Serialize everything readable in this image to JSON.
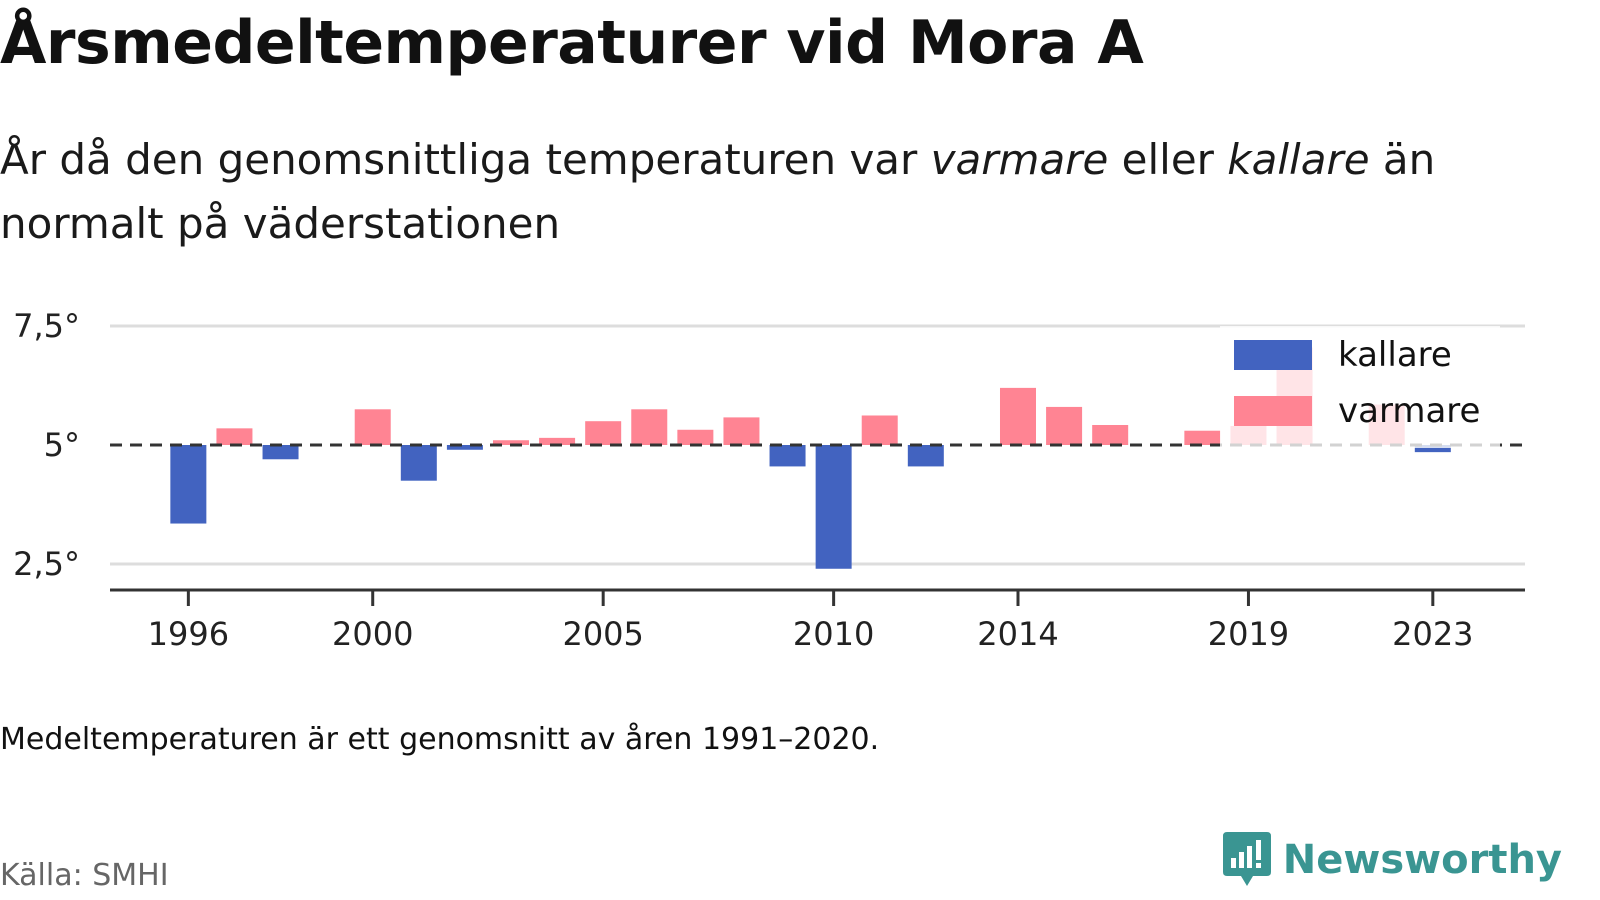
{
  "title": "Årsmedeltemperaturer vid Mora A",
  "subtitle": {
    "part1": "År då den genomsnittliga temperaturen var ",
    "warm_word": "varmare",
    "part2": " eller ",
    "cold_word": "kallare",
    "part3": " än normalt på väderstationen"
  },
  "note": "Medeltemperaturen är ett genomsnitt av åren 1991–2020.",
  "source": "Källa: SMHI",
  "brand": {
    "name": "Newsworthy",
    "icon": "newsworthy-logo-icon",
    "color": "#3a9592"
  },
  "chart_data": {
    "type": "bar",
    "baseline": 5.0,
    "ylim": [
      2.0,
      7.6
    ],
    "yticks": [
      2.5,
      5,
      7.5
    ],
    "ytick_labels": [
      "2,5°",
      "5°",
      "7,5°"
    ],
    "xlim": [
      1994.3,
      2025.0
    ],
    "xticks": [
      1996,
      2000,
      2005,
      2010,
      2014,
      2019,
      2023
    ],
    "xtick_labels": [
      "1996",
      "2000",
      "2005",
      "2010",
      "2014",
      "2019",
      "2023"
    ],
    "grid": true,
    "legend_position": "top-right",
    "colors": {
      "kallare": "#4263c0",
      "varmare": "#ff8493"
    },
    "series": [
      {
        "name": "kallare",
        "color": "#4263c0"
      },
      {
        "name": "varmare",
        "color": "#ff8493"
      }
    ],
    "x": [
      1996,
      1997,
      1998,
      2000,
      2001,
      2002,
      2003,
      2004,
      2005,
      2006,
      2007,
      2008,
      2009,
      2010,
      2011,
      2012,
      2014,
      2015,
      2016,
      2018,
      2019,
      2020,
      2022,
      2023
    ],
    "values": [
      3.35,
      5.35,
      4.7,
      5.75,
      4.25,
      4.9,
      5.1,
      5.15,
      5.5,
      5.75,
      5.32,
      5.58,
      4.55,
      2.4,
      5.62,
      4.55,
      6.2,
      5.8,
      5.42,
      5.3,
      5.4,
      7.05,
      5.85,
      4.85
    ]
  }
}
